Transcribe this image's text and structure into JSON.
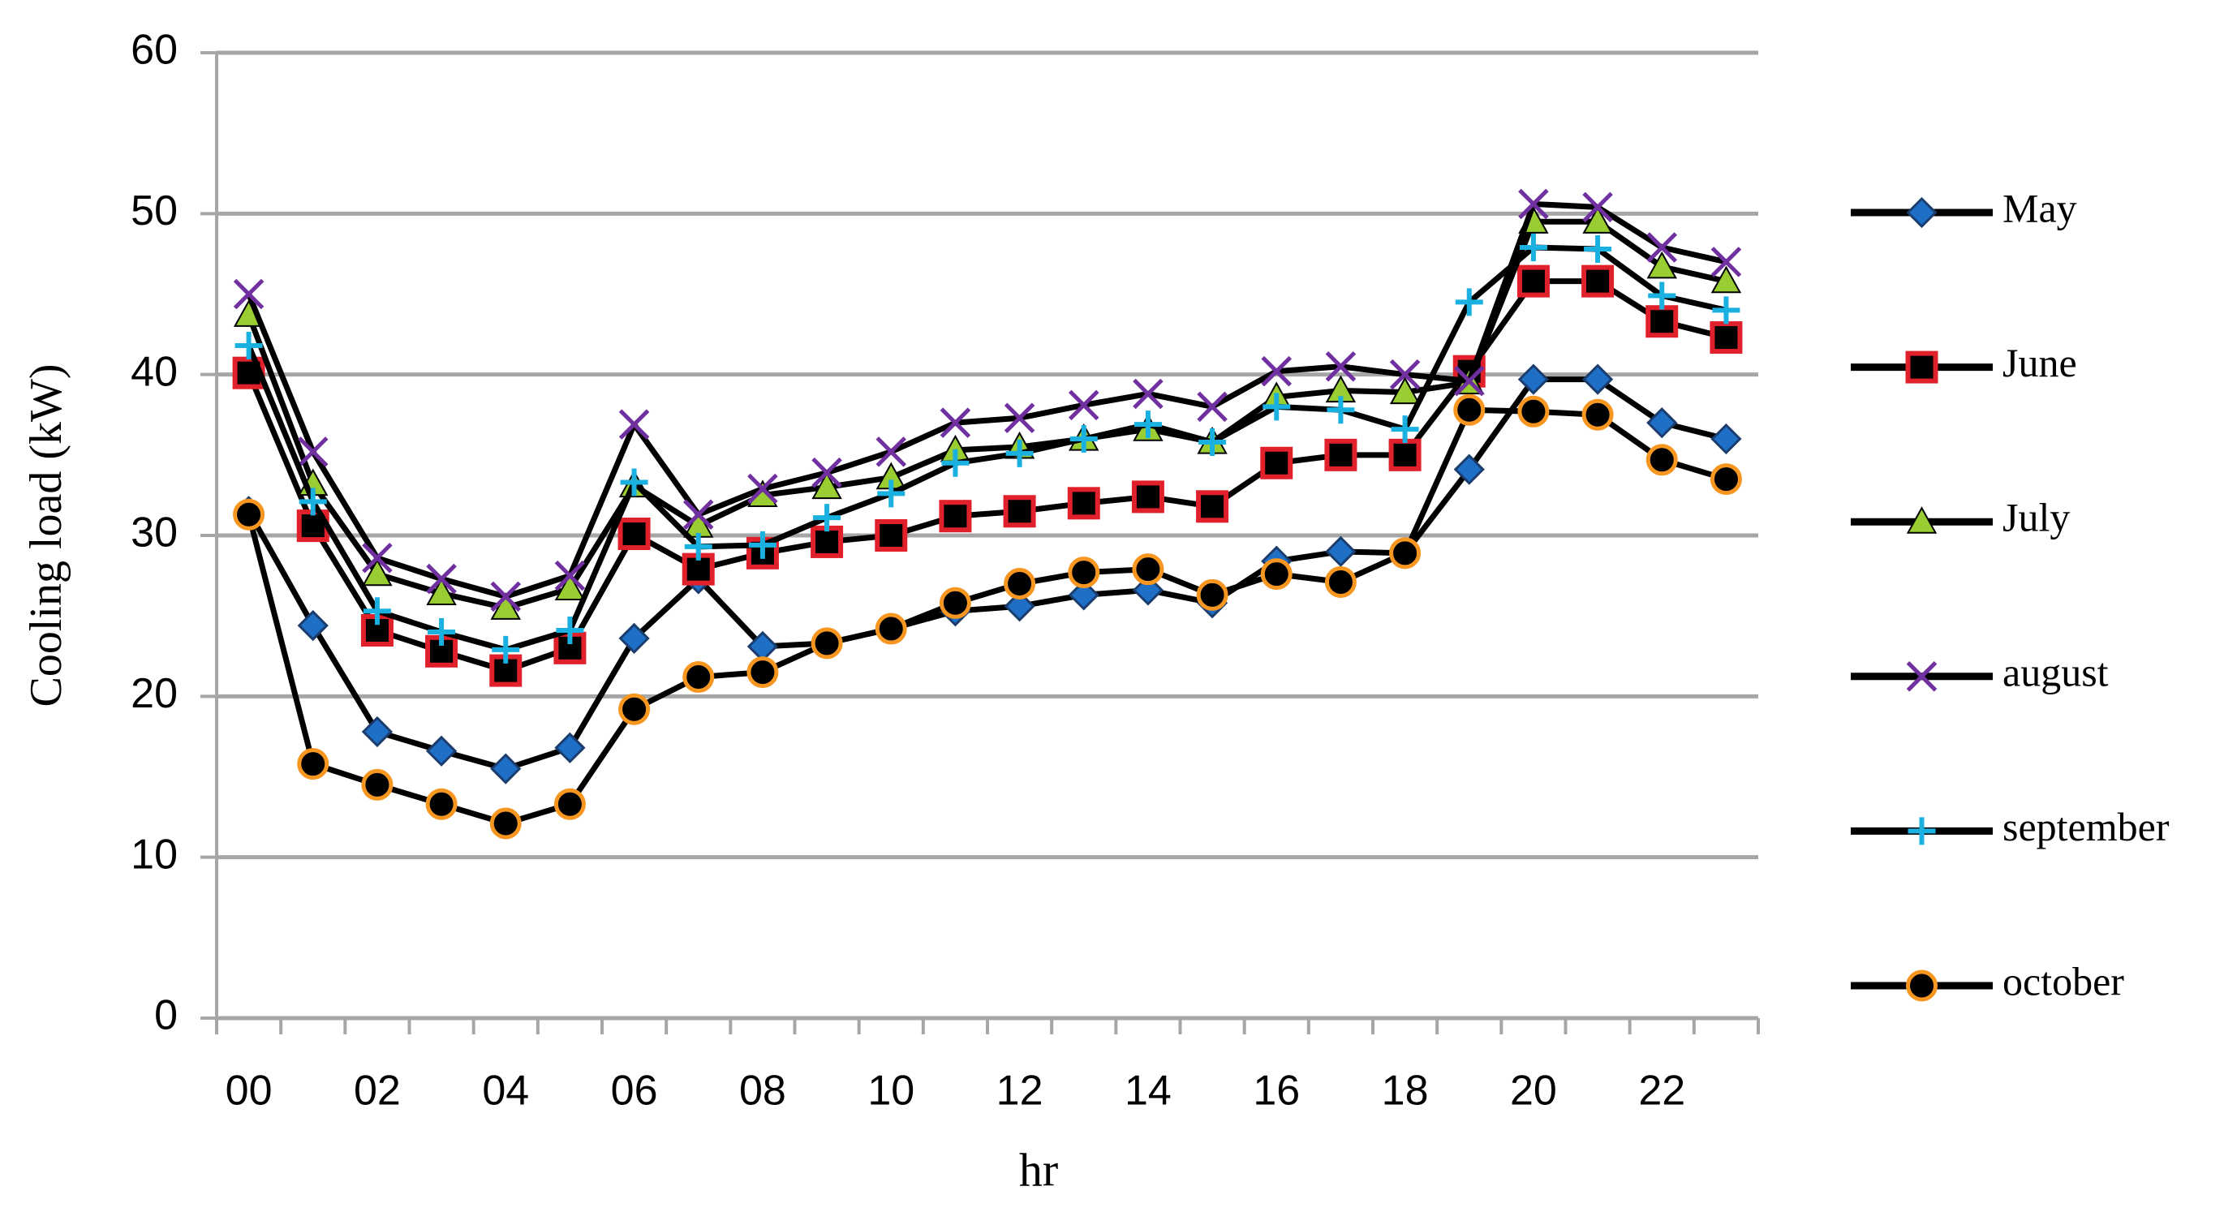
{
  "chart_data": {
    "type": "line",
    "y_label": "Cooling load (kW)",
    "x_label": "hr",
    "categories": [
      "00",
      null,
      "02",
      null,
      "04",
      null,
      "06",
      null,
      "08",
      null,
      "10",
      null,
      "12",
      null,
      "14",
      null,
      "16",
      null,
      "18",
      null,
      "20",
      null,
      "22",
      null
    ],
    "ylim": [
      0,
      60
    ],
    "yticks": [
      0,
      10,
      20,
      30,
      40,
      50,
      60
    ],
    "grid": true,
    "legend": "right",
    "series": [
      {
        "name": "May",
        "color": "#1f6fc6",
        "marker": "diamond",
        "values": [
          31.5,
          24.4,
          17.8,
          16.6,
          15.5,
          16.8,
          23.6,
          27.3,
          23.1,
          23.3,
          24.2,
          25.3,
          25.6,
          26.3,
          26.6,
          25.8,
          28.4,
          29.0,
          28.9,
          34.1,
          39.7,
          39.7,
          37.0,
          36.0
        ]
      },
      {
        "name": "June",
        "color": "#e0202a",
        "marker": "square",
        "values": [
          40.1,
          30.6,
          24.1,
          22.8,
          21.6,
          23.0,
          30.1,
          27.9,
          28.9,
          29.6,
          30.0,
          31.2,
          31.5,
          32.0,
          32.4,
          31.8,
          34.5,
          35.0,
          35.0,
          40.2,
          45.8,
          45.8,
          43.3,
          42.3
        ]
      },
      {
        "name": "July",
        "color": "#9acd32",
        "marker": "triangle",
        "values": [
          43.7,
          33.2,
          27.6,
          26.4,
          25.5,
          26.7,
          33.1,
          30.6,
          32.5,
          33.0,
          33.6,
          35.3,
          35.5,
          36.0,
          36.6,
          35.8,
          38.6,
          39.0,
          38.9,
          39.5,
          49.5,
          49.5,
          46.7,
          45.8
        ]
      },
      {
        "name": "august",
        "color": "#7030a0",
        "marker": "x",
        "values": [
          45.0,
          35.2,
          28.6,
          27.3,
          26.2,
          27.5,
          36.9,
          31.3,
          32.9,
          33.9,
          35.2,
          37.0,
          37.3,
          38.1,
          38.8,
          38.0,
          40.2,
          40.5,
          40.0,
          39.6,
          50.6,
          50.4,
          47.9,
          47.0
        ]
      },
      {
        "name": "september",
        "color": "#1ab0e0",
        "marker": "plus",
        "values": [
          41.8,
          32.1,
          25.3,
          24.0,
          22.9,
          24.1,
          33.3,
          29.3,
          29.4,
          31.1,
          32.6,
          34.5,
          35.1,
          36.0,
          36.9,
          35.8,
          38.0,
          37.8,
          36.6,
          44.5,
          47.9,
          47.8,
          44.9,
          44.0
        ]
      },
      {
        "name": "october",
        "color": "#f79620",
        "marker": "circle",
        "values": [
          31.3,
          15.8,
          14.5,
          13.3,
          12.1,
          13.3,
          19.2,
          21.2,
          21.5,
          23.3,
          24.2,
          25.8,
          27.0,
          27.7,
          27.9,
          26.3,
          27.6,
          27.1,
          28.9,
          37.8,
          37.7,
          37.5,
          34.7,
          33.5
        ]
      }
    ]
  }
}
